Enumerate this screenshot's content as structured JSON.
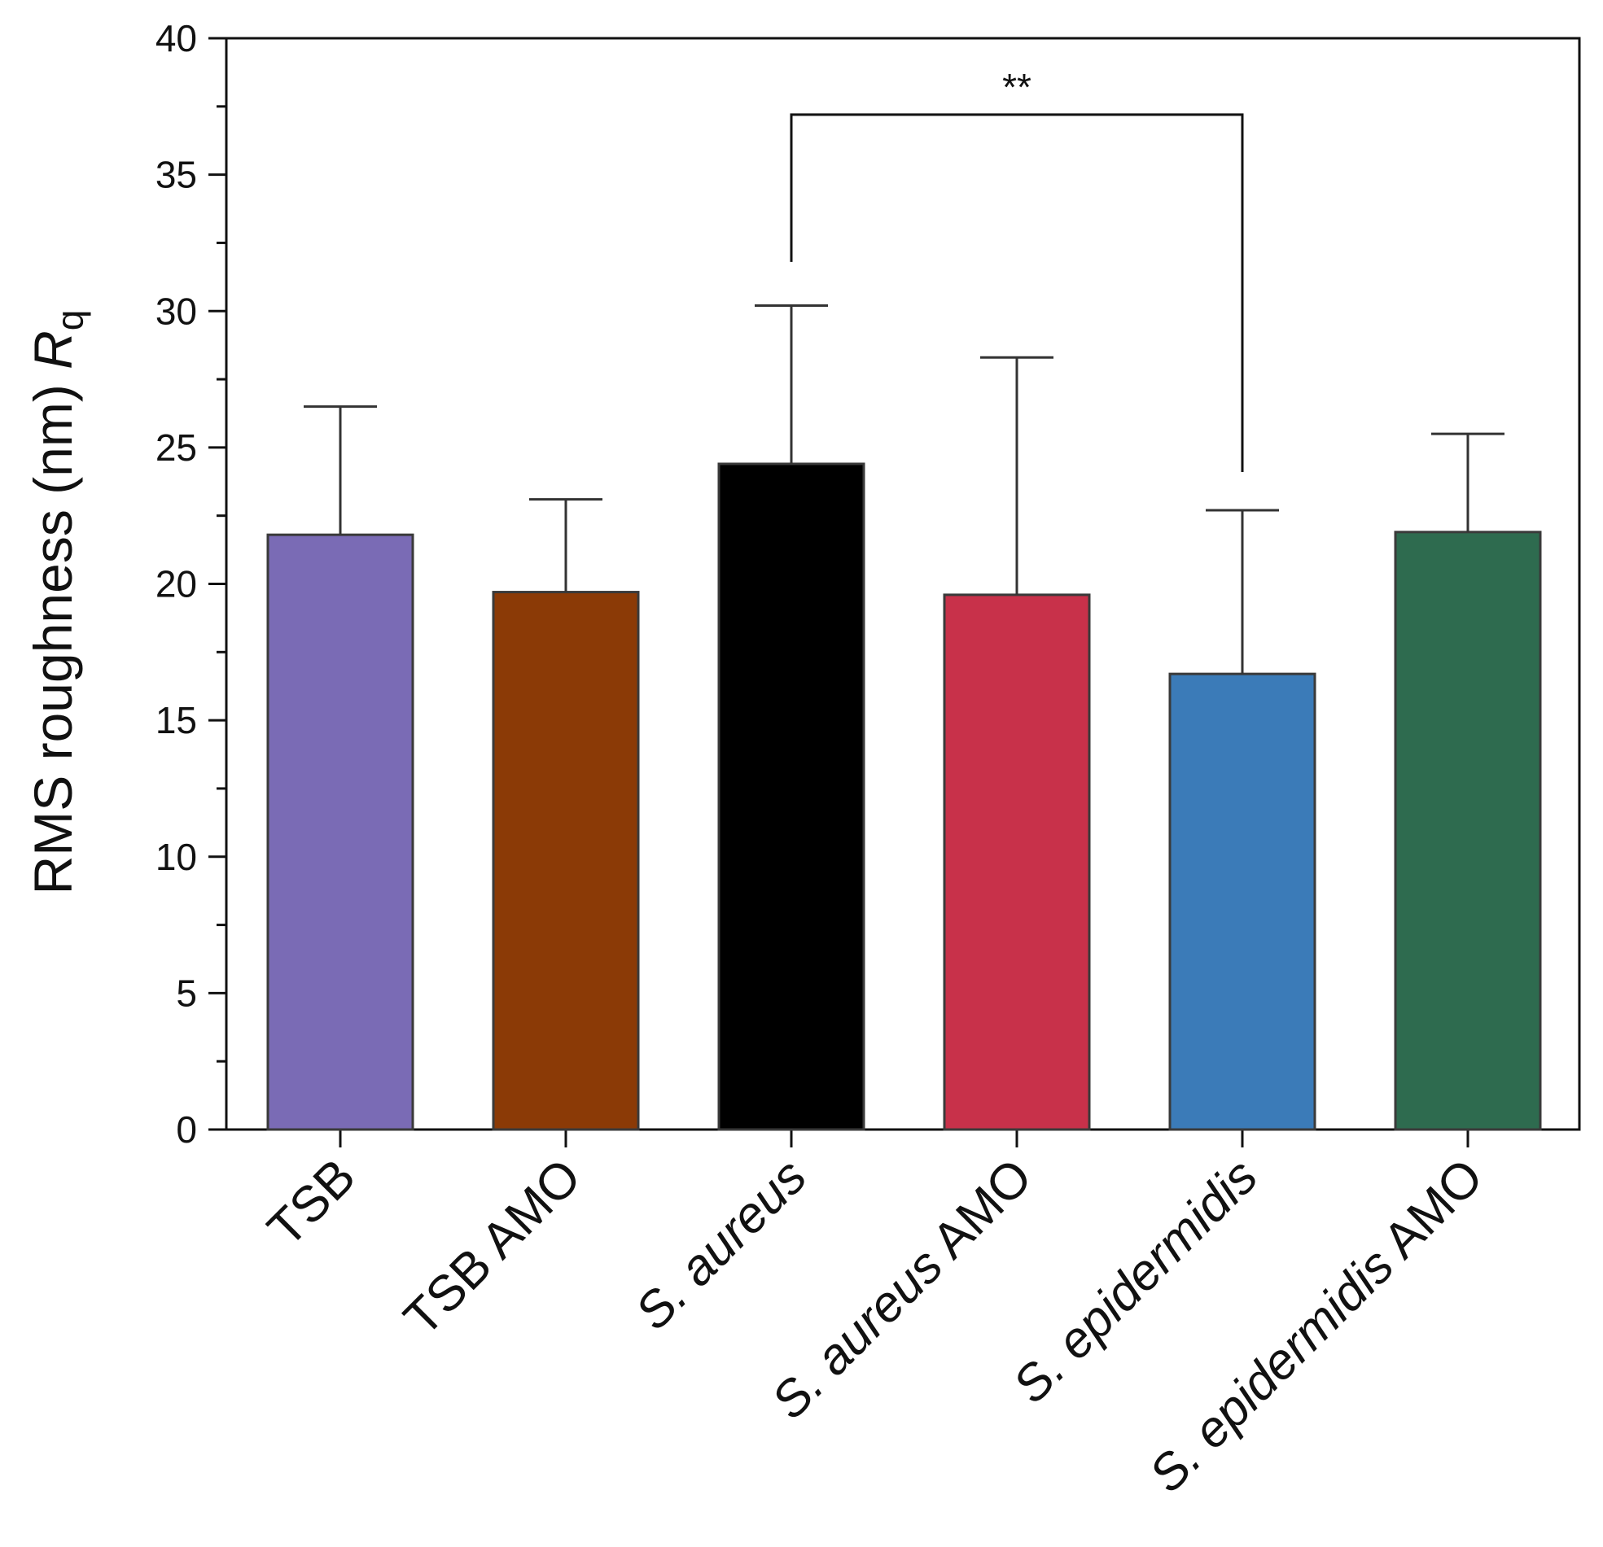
{
  "chart_data": {
    "type": "bar",
    "title": "",
    "xlabel": "",
    "ylabel": {
      "text": "RMS roughness (nm) ",
      "symbol": "R",
      "subscript": "q"
    },
    "ylim": [
      0,
      40
    ],
    "yticks": [
      "0",
      "5",
      "10",
      "15",
      "20",
      "25",
      "30",
      "35",
      "40"
    ],
    "grid": false,
    "categories": [
      {
        "prefix": "",
        "italic": "",
        "suffix": "TSB"
      },
      {
        "prefix": "",
        "italic": "",
        "suffix": "TSB AMO"
      },
      {
        "prefix": "",
        "italic": "S. aureus",
        "suffix": ""
      },
      {
        "prefix": "",
        "italic": "S. aureus",
        "suffix": " AMO"
      },
      {
        "prefix": "",
        "italic": "S. epidermidis",
        "suffix": ""
      },
      {
        "prefix": "",
        "italic": "S. epidermidis",
        "suffix": " AMO"
      }
    ],
    "values": [
      21.8,
      19.7,
      24.4,
      19.6,
      16.7,
      21.9
    ],
    "errors": [
      4.7,
      3.4,
      5.8,
      8.7,
      6.0,
      3.6
    ],
    "colors": [
      "#7a6bb5",
      "#8b3a06",
      "#000000",
      "#c8314a",
      "#3b7bb8",
      "#2e6b4f"
    ],
    "significance": [
      {
        "from": 2,
        "to": 4,
        "label": "**",
        "level": 37.2,
        "left_end": 31.8,
        "right_end": 24.1
      }
    ]
  }
}
